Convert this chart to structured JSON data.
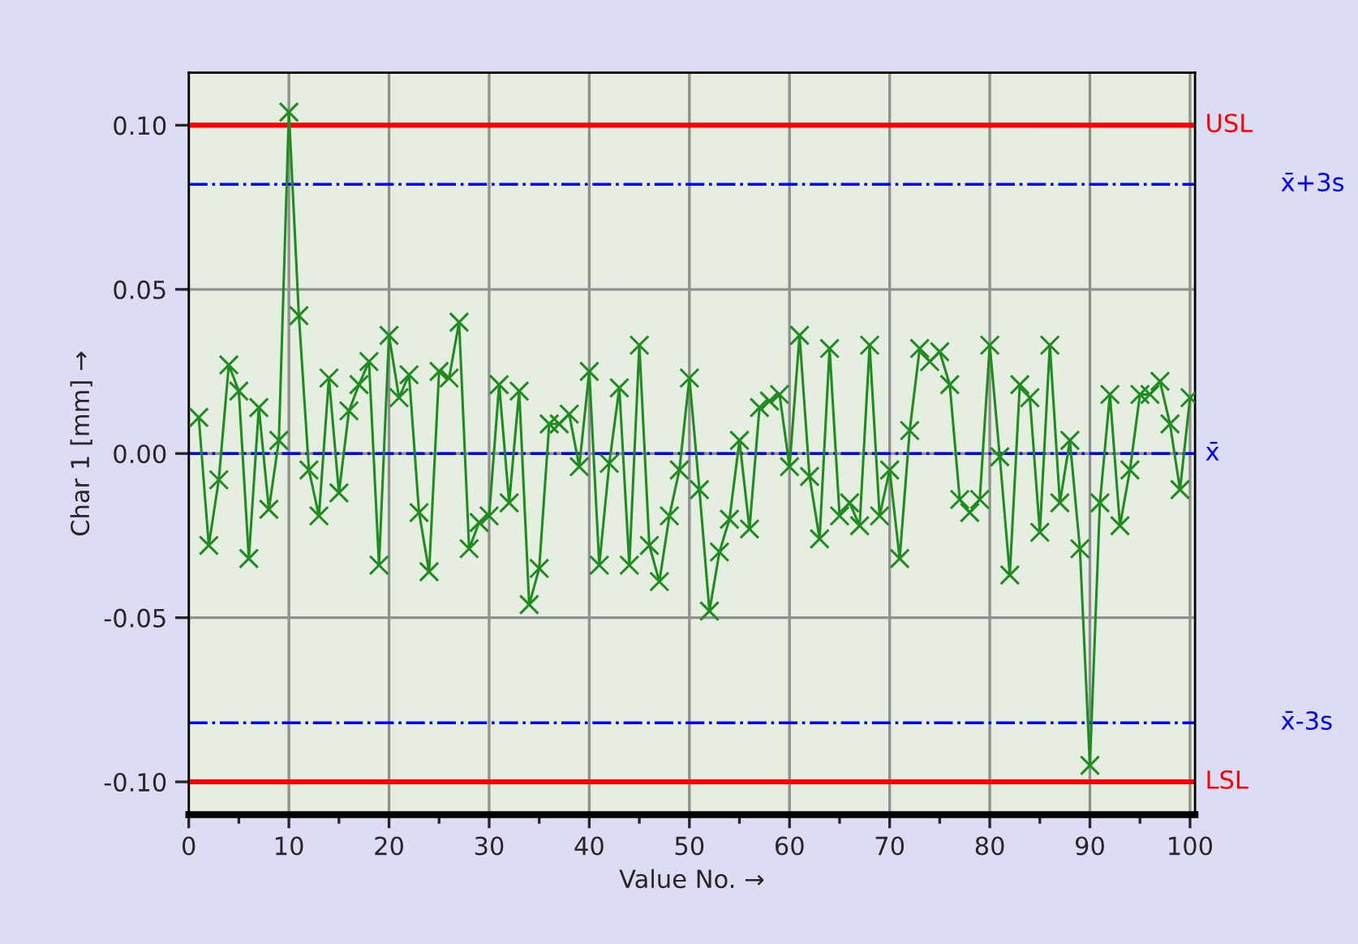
{
  "chart_data": {
    "type": "line",
    "xlabel": "Value No. →",
    "ylabel": "Char 1 [mm] →",
    "x": [
      1,
      2,
      3,
      4,
      5,
      6,
      7,
      8,
      9,
      10,
      11,
      12,
      13,
      14,
      15,
      16,
      17,
      18,
      19,
      20,
      21,
      22,
      23,
      24,
      25,
      26,
      27,
      28,
      29,
      30,
      31,
      32,
      33,
      34,
      35,
      36,
      37,
      38,
      39,
      40,
      41,
      42,
      43,
      44,
      45,
      46,
      47,
      48,
      49,
      50,
      51,
      52,
      53,
      54,
      55,
      56,
      57,
      58,
      59,
      60,
      61,
      62,
      63,
      64,
      65,
      66,
      67,
      68,
      69,
      70,
      71,
      72,
      73,
      74,
      75,
      76,
      77,
      78,
      79,
      80,
      81,
      82,
      83,
      84,
      85,
      86,
      87,
      88,
      89,
      90,
      91,
      92,
      93,
      94,
      95,
      96,
      97,
      98,
      99,
      100
    ],
    "series": [
      {
        "color": "#1e8c1e",
        "values": [
          0.011,
          -0.028,
          -0.008,
          0.027,
          0.019,
          -0.032,
          0.014,
          -0.017,
          0.004,
          0.104,
          0.042,
          -0.005,
          -0.019,
          0.023,
          -0.012,
          0.013,
          0.021,
          0.028,
          -0.034,
          0.036,
          0.017,
          0.024,
          -0.018,
          -0.036,
          0.025,
          0.023,
          0.04,
          -0.029,
          -0.021,
          -0.019,
          0.021,
          -0.015,
          0.019,
          -0.046,
          -0.035,
          0.009,
          0.009,
          0.012,
          -0.004,
          0.025,
          -0.034,
          -0.003,
          0.02,
          -0.034,
          0.033,
          -0.028,
          -0.039,
          -0.019,
          -0.005,
          0.023,
          -0.011,
          -0.048,
          -0.03,
          -0.02,
          0.004,
          -0.023,
          0.014,
          0.016,
          0.018,
          -0.004,
          0.036,
          -0.007,
          -0.026,
          0.032,
          -0.019,
          -0.015,
          -0.022,
          0.033,
          -0.019,
          -0.005,
          -0.032,
          0.007,
          0.032,
          0.028,
          0.031,
          0.021,
          -0.014,
          -0.018,
          -0.014,
          0.033,
          -0.001,
          -0.037,
          0.021,
          0.017,
          -0.024,
          0.033,
          -0.015,
          0.004,
          -0.029,
          -0.095,
          -0.015,
          0.018,
          -0.022,
          -0.005,
          0.018,
          0.018,
          0.022,
          0.009,
          -0.011,
          0.017
        ]
      }
    ],
    "marker": "cross",
    "xlim": [
      0,
      100.5
    ],
    "ylim": [
      -0.11,
      0.116
    ],
    "xticks": [
      0,
      {
        "value": 5,
        "label": null
      },
      10,
      {
        "value": 15,
        "label": null
      },
      20,
      {
        "value": 25,
        "label": null
      },
      30,
      {
        "value": 35,
        "label": null
      },
      40,
      {
        "value": 45,
        "label": null
      },
      50,
      {
        "value": 55,
        "label": null
      },
      60,
      {
        "value": 65,
        "label": null
      },
      70,
      {
        "value": 75,
        "label": null
      },
      80,
      {
        "value": 85,
        "label": null
      },
      90,
      {
        "value": 95,
        "label": null
      },
      100
    ],
    "yticks": [
      {
        "value": -0.1,
        "label": "-0.10"
      },
      {
        "value": -0.05,
        "label": "-0.05"
      },
      {
        "value": 0,
        "label": "0.00"
      },
      {
        "value": 0.05,
        "label": "0.05"
      },
      {
        "value": 0.1,
        "label": "0.10"
      }
    ],
    "grid": true,
    "ref_lines": [
      {
        "axis": "y",
        "value": 0.1,
        "label": "USL",
        "color": "#ff0000",
        "line_style": "solid"
      },
      {
        "axis": "y",
        "value": 0.082,
        "label": "x̄+3s",
        "color": "#0000ff",
        "line_style": "dashdot"
      },
      {
        "axis": "y",
        "value": 0,
        "label": "x̄",
        "color": "#0000ff",
        "line_style": "dashdot"
      },
      {
        "axis": "y",
        "value": -0.082,
        "label": "x̄-3s",
        "color": "#0000ff",
        "line_style": "dashdot"
      },
      {
        "axis": "y",
        "value": -0.1,
        "label": "LSL",
        "color": "#ff0000",
        "line_style": "solid"
      }
    ]
  }
}
